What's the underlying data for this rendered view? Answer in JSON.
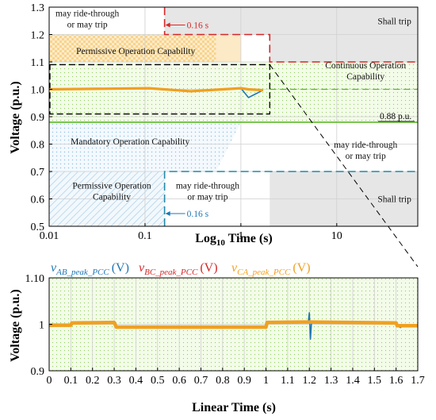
{
  "chart_data": [
    {
      "type": "line",
      "xscale": "log",
      "xlim": [
        0.01,
        70
      ],
      "ylim": [
        0.5,
        1.3
      ],
      "xlabel": {
        "base": "Log",
        "sub": "10",
        "rest": " Time (s)"
      },
      "ylabel": "Voltage (p.u.)",
      "x_ticks": [
        0.01,
        0.1,
        1,
        10
      ],
      "x_tick_labels": [
        "0.01",
        "0.1",
        "1",
        "10"
      ],
      "y_ticks": [
        0.5,
        0.6,
        0.7,
        0.8,
        0.9,
        1.0,
        1.1,
        1.2,
        1.3
      ],
      "y_tick_labels": [
        "0.5",
        "0.6",
        "0.7",
        "0.8",
        "0.9",
        "1.0",
        "1.1",
        "1.2",
        "1.3"
      ],
      "grid": true,
      "regions": [
        {
          "label_lines": [
            "may ride-through",
            "or may trip"
          ],
          "x": 0.025,
          "y": 1.25
        },
        {
          "label_lines": [
            "Shall trip"
          ],
          "x": 40,
          "y": 1.25
        },
        {
          "label_lines": [
            "Permissive Operation Capability"
          ],
          "x": 0.08,
          "y": 1.14
        },
        {
          "label_lines": [
            "Continuous Operation",
            "Capability"
          ],
          "x": 20,
          "y": 1.06
        },
        {
          "label_lines": [
            "Mandatory Operation Capability"
          ],
          "x": 0.07,
          "y": 0.81
        },
        {
          "label_lines": [
            "may ride-through",
            "or may trip"
          ],
          "x": 20,
          "y": 0.77
        },
        {
          "label_lines": [
            "Permissive Operation",
            "Capability"
          ],
          "x": 0.045,
          "y": 0.62
        },
        {
          "label_lines": [
            "may ride-through",
            "or may trip"
          ],
          "x": 0.45,
          "y": 0.62
        },
        {
          "label_lines": [
            "Shall trip"
          ],
          "x": 40,
          "y": 0.6
        }
      ],
      "annotations": [
        {
          "text": "0.16 s",
          "x": 0.16,
          "y": 1.2,
          "color": "#d62728"
        },
        {
          "text": "0.16 s",
          "x": 0.16,
          "y": 0.5,
          "color": "#1f77b4"
        },
        {
          "text": "0.88 p.u.",
          "x": 40,
          "y": 0.88,
          "color": "#000000"
        }
      ],
      "limits": [
        {
          "name": "upper",
          "color": "#d62728",
          "x": [
            0.16,
            0.16,
            2,
            2,
            70
          ],
          "y": [
            1.3,
            1.2,
            1.2,
            1.1,
            1.1
          ]
        },
        {
          "name": "lower",
          "color": "#1f8aa8",
          "x": [
            0.16,
            0.16,
            2,
            2,
            70
          ],
          "y": [
            0.5,
            0.7,
            0.7,
            0.7,
            0.7
          ]
        },
        {
          "name": "continuous-min",
          "color": "#5cb82a",
          "x": [
            0.01,
            70
          ],
          "y": [
            0.88,
            0.88
          ]
        }
      ],
      "series": [
        {
          "color": "#1f77b4",
          "x": [
            0.01,
            0.11,
            0.3,
            1.0,
            1.2,
            1.7
          ],
          "y": [
            1.0,
            1.004,
            0.993,
            1.004,
            0.97,
            0.997
          ]
        },
        {
          "color": "#d62728",
          "x": [
            0.01,
            0.11,
            0.3,
            1.0,
            1.2,
            1.7
          ],
          "y": [
            1.0,
            1.004,
            0.993,
            1.004,
            1.0,
            0.997
          ]
        },
        {
          "color": "#f0a020",
          "x": [
            0.01,
            0.11,
            0.3,
            1.0,
            1.2,
            1.7
          ],
          "y": [
            1.0,
            1.004,
            0.993,
            1.004,
            1.0,
            0.997
          ]
        }
      ],
      "zoom_box": {
        "x": [
          0.01,
          2
        ],
        "y": [
          0.91,
          1.09
        ]
      }
    },
    {
      "type": "line",
      "xlim": [
        0,
        1.7
      ],
      "ylim": [
        0.9,
        1.1
      ],
      "xlabel": "Linear Time (s)",
      "ylabel": "Voltage (p.u.)",
      "x_tick_labels": [
        "0",
        "0.1",
        "0.2",
        "0.3",
        "0.4",
        "0.5",
        "0.6",
        "0.7",
        "0.8",
        "0.9",
        "1",
        "1.1",
        "1.2",
        "1.3",
        "1.4",
        "1.5",
        "1.6",
        "1.7"
      ],
      "y_ticks": [
        0.9,
        1.0,
        1.1
      ],
      "y_tick_labels": [
        "0.9",
        "1",
        "1.10"
      ],
      "grid": true,
      "legend_position": "top",
      "series": [
        {
          "name": {
            "base": "v",
            "sub": "AB_peak_PCC",
            "unit": "(V)"
          },
          "color": "#1f77b4",
          "x": [
            0,
            0.1,
            0.105,
            0.3,
            0.31,
            1.0,
            1.005,
            1.195,
            1.2,
            1.205,
            1.21,
            1.6,
            1.605,
            1.62,
            1.63,
            1.7
          ],
          "y": [
            0.998,
            0.998,
            1.003,
            1.004,
            0.993,
            0.994,
            1.004,
            1.005,
            1.025,
            0.968,
            1.005,
            1.003,
            0.997,
            0.993,
            0.997,
            0.997
          ]
        },
        {
          "name": {
            "base": "v",
            "sub": "BC_peak_PCC",
            "unit": "(V)"
          },
          "color": "#d62728",
          "x": [
            0,
            0.1,
            0.105,
            0.3,
            0.31,
            1.0,
            1.005,
            1.2,
            1.6,
            1.605,
            1.7
          ],
          "y": [
            0.998,
            0.998,
            1.003,
            1.004,
            0.994,
            0.994,
            1.004,
            1.005,
            1.003,
            0.997,
            0.997
          ]
        },
        {
          "name": {
            "base": "v",
            "sub": "CA_peak_PCC",
            "unit": "(V)"
          },
          "color": "#f0a020",
          "x": [
            0,
            0.1,
            0.105,
            0.3,
            0.31,
            1.0,
            1.005,
            1.2,
            1.6,
            1.605,
            1.7
          ],
          "y": [
            0.998,
            0.998,
            1.003,
            1.004,
            0.994,
            0.994,
            1.004,
            1.005,
            1.003,
            0.997,
            0.997
          ]
        }
      ]
    }
  ]
}
